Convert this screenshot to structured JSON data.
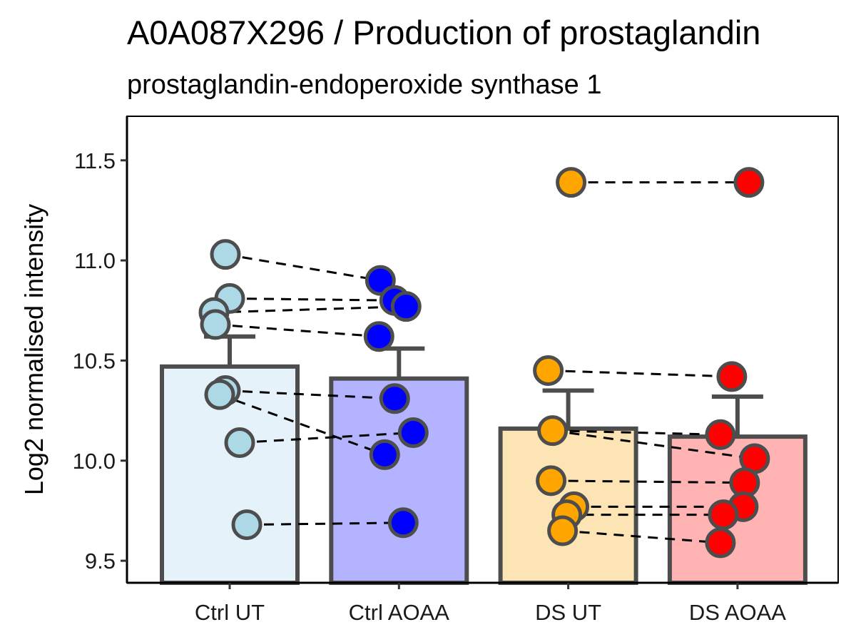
{
  "chart_data": {
    "type": "bar",
    "title": "A0A087X296 / Production of prostaglandin",
    "subtitle": "prostaglandin-endoperoxide synthase 1",
    "xlabel": "",
    "ylabel": "Log2 normalised intensity",
    "ylim": [
      9.39,
      11.72
    ],
    "yticks": [
      "9.5",
      "10.0",
      "10.5",
      "11.0",
      "11.5"
    ],
    "grid": false,
    "legend": "none",
    "categories": [
      "Ctrl UT",
      "Ctrl AOAA",
      "DS UT",
      "DS AOAA"
    ],
    "bar_fill_colors": [
      "#e6f2f9",
      "#b3b3ff",
      "#fde4b4",
      "#ffb3b3"
    ],
    "point_colors": [
      "#add8e6",
      "#0000ff",
      "#ffa500",
      "#ff0000"
    ],
    "outline_color": "#4d4d4d",
    "bar_means": [
      10.47,
      10.41,
      10.16,
      10.12
    ],
    "error_upper": [
      10.62,
      10.56,
      10.35,
      10.32
    ],
    "points": [
      [
        11.03,
        10.81,
        10.74,
        10.68,
        10.35,
        10.33,
        10.09,
        9.68
      ],
      [
        10.9,
        10.8,
        10.77,
        10.62,
        10.31,
        10.14,
        10.03,
        9.69
      ],
      [
        11.39,
        10.45,
        10.15,
        9.9,
        9.77,
        9.73,
        9.65
      ],
      [
        11.39,
        10.42,
        10.13,
        10.01,
        9.89,
        9.77,
        9.73,
        9.59
      ]
    ],
    "point_offsets": [
      [
        -0.03,
        0.0,
        -0.11,
        -0.1,
        -0.03,
        -0.07,
        0.07,
        0.12
      ],
      [
        -0.13,
        -0.03,
        0.05,
        -0.14,
        -0.03,
        0.1,
        -0.1,
        0.03
      ],
      [
        0.02,
        -0.14,
        -0.11,
        -0.12,
        0.04,
        -0.01,
        -0.04
      ],
      [
        0.08,
        -0.04,
        -0.12,
        0.12,
        0.05,
        0.04,
        -0.1,
        -0.12
      ]
    ],
    "pairs": [
      [
        [
          0,
          0
        ],
        [
          1,
          0
        ]
      ],
      [
        [
          0,
          1
        ],
        [
          1,
          1
        ]
      ],
      [
        [
          0,
          2
        ],
        [
          1,
          2
        ]
      ],
      [
        [
          0,
          3
        ],
        [
          1,
          3
        ]
      ],
      [
        [
          0,
          4
        ],
        [
          1,
          4
        ]
      ],
      [
        [
          0,
          5
        ],
        [
          1,
          6
        ]
      ],
      [
        [
          0,
          6
        ],
        [
          1,
          5
        ]
      ],
      [
        [
          0,
          7
        ],
        [
          1,
          7
        ]
      ],
      [
        [
          2,
          0
        ],
        [
          3,
          0
        ]
      ],
      [
        [
          2,
          1
        ],
        [
          3,
          1
        ]
      ],
      [
        [
          2,
          2
        ],
        [
          3,
          2
        ]
      ],
      [
        [
          2,
          2
        ],
        [
          3,
          3
        ]
      ],
      [
        [
          2,
          3
        ],
        [
          3,
          4
        ]
      ],
      [
        [
          2,
          4
        ],
        [
          3,
          5
        ]
      ],
      [
        [
          2,
          5
        ],
        [
          3,
          6
        ]
      ],
      [
        [
          2,
          6
        ],
        [
          3,
          7
        ]
      ]
    ]
  }
}
